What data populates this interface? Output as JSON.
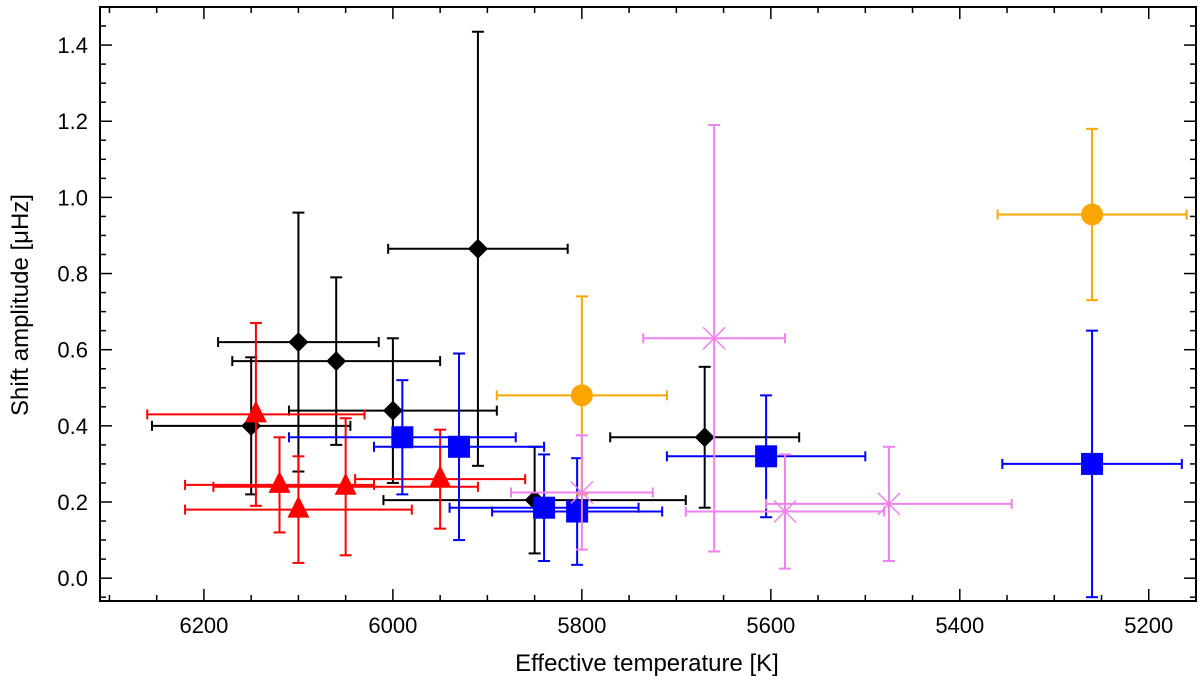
{
  "chart_data": {
    "type": "scatter",
    "title": "",
    "xlabel": "Effective temperature [K]",
    "ylabel": "Shift amplitude [μHz]",
    "xlim": [
      6310,
      5150
    ],
    "ylim": [
      -0.06,
      1.5
    ],
    "x_reversed": true,
    "x_ticks": [
      6200,
      6000,
      5800,
      5600,
      5400,
      5200
    ],
    "y_ticks": [
      0.0,
      0.2,
      0.4,
      0.6,
      0.8,
      1.0,
      1.2,
      1.4
    ],
    "y_tick_labels": [
      "0.0",
      "0.2",
      "0.4",
      "0.6",
      "0.8",
      "1.0",
      "1.2",
      "1.4"
    ],
    "series": [
      {
        "name": "black diamonds",
        "marker": "diamond",
        "color": "#000000",
        "points": [
          {
            "x": 6150,
            "y": 0.4,
            "xerr": 105,
            "yerr_lo": 0.18,
            "yerr_hi": 0.18
          },
          {
            "x": 6100,
            "y": 0.62,
            "xerr": 85,
            "yerr_lo": 0.34,
            "yerr_hi": 0.34
          },
          {
            "x": 6060,
            "y": 0.57,
            "xerr": 110,
            "yerr_lo": 0.22,
            "yerr_hi": 0.22
          },
          {
            "x": 6000,
            "y": 0.44,
            "xerr": 110,
            "yerr_lo": 0.19,
            "yerr_hi": 0.19
          },
          {
            "x": 5910,
            "y": 0.865,
            "xerr": 95,
            "yerr_lo": 0.57,
            "yerr_hi": 0.57
          },
          {
            "x": 5850,
            "y": 0.205,
            "xerr": 160,
            "yerr_lo": 0.14,
            "yerr_hi": 0.14
          },
          {
            "x": 5670,
            "y": 0.37,
            "xerr": 100,
            "yerr_lo": 0.185,
            "yerr_hi": 0.185
          }
        ]
      },
      {
        "name": "red triangles",
        "marker": "triangle",
        "color": "#ff0000",
        "points": [
          {
            "x": 6145,
            "y": 0.43,
            "xerr": 115,
            "yerr_lo": 0.24,
            "yerr_hi": 0.24
          },
          {
            "x": 6120,
            "y": 0.245,
            "xerr": 100,
            "yerr_lo": 0.125,
            "yerr_hi": 0.125
          },
          {
            "x": 6100,
            "y": 0.18,
            "xerr": 120,
            "yerr_lo": 0.14,
            "yerr_hi": 0.14
          },
          {
            "x": 6050,
            "y": 0.24,
            "xerr": 140,
            "yerr_lo": 0.18,
            "yerr_hi": 0.18
          },
          {
            "x": 5950,
            "y": 0.26,
            "xerr": 90,
            "yerr_lo": 0.13,
            "yerr_hi": 0.13
          }
        ]
      },
      {
        "name": "blue squares",
        "marker": "square",
        "color": "#0000ff",
        "points": [
          {
            "x": 5990,
            "y": 0.37,
            "xerr": 120,
            "yerr_lo": 0.15,
            "yerr_hi": 0.15
          },
          {
            "x": 5930,
            "y": 0.345,
            "xerr": 90,
            "yerr_lo": 0.245,
            "yerr_hi": 0.245
          },
          {
            "x": 5840,
            "y": 0.185,
            "xerr": 100,
            "yerr_lo": 0.14,
            "yerr_hi": 0.14
          },
          {
            "x": 5805,
            "y": 0.175,
            "xerr": 90,
            "yerr_lo": 0.14,
            "yerr_hi": 0.14
          },
          {
            "x": 5605,
            "y": 0.32,
            "xerr": 105,
            "yerr_lo": 0.16,
            "yerr_hi": 0.16
          },
          {
            "x": 5260,
            "y": 0.3,
            "xerr": 95,
            "yerr_lo": 0.35,
            "yerr_hi": 0.35
          }
        ]
      },
      {
        "name": "orange circles",
        "marker": "circle",
        "color": "#ffa500",
        "points": [
          {
            "x": 5800,
            "y": 0.48,
            "xerr": 90,
            "yerr_lo": 0.26,
            "yerr_hi": 0.26
          },
          {
            "x": 5260,
            "y": 0.955,
            "xerr": 100,
            "yerr_lo": 0.225,
            "yerr_hi": 0.225
          }
        ]
      },
      {
        "name": "violet crosses",
        "marker": "asterisk",
        "color": "#ee82ee",
        "points": [
          {
            "x": 5800,
            "y": 0.225,
            "xerr": 75,
            "yerr_lo": 0.15,
            "yerr_hi": 0.15
          },
          {
            "x": 5660,
            "y": 0.63,
            "xerr": 75,
            "yerr_lo": 0.56,
            "yerr_hi": 0.56
          },
          {
            "x": 5585,
            "y": 0.175,
            "xerr": 105,
            "yerr_lo": 0.15,
            "yerr_hi": 0.15
          },
          {
            "x": 5475,
            "y": 0.195,
            "xerr": 130,
            "yerr_lo": 0.15,
            "yerr_hi": 0.15
          }
        ]
      }
    ]
  }
}
